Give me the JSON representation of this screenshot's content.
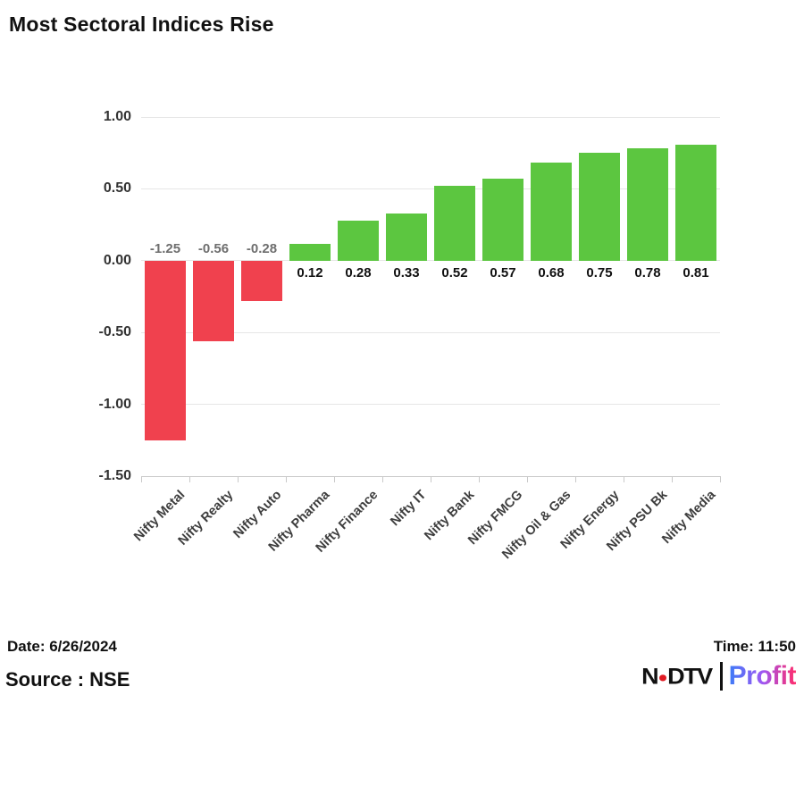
{
  "title": "Most Sectoral Indices Rise",
  "chart_data": {
    "type": "bar",
    "title": "Most Sectoral Indices Rise",
    "categories": [
      "Nifty Metal",
      "Nifty Realty",
      "Nifty Auto",
      "Nifty Pharma",
      "Nifty Finance",
      "Nifty IT",
      "Nifty Bank",
      "Nifty FMCG",
      "Nifty Oil & Gas",
      "Nifty Energy",
      "Nifty PSU Bk",
      "Nifty Media"
    ],
    "values": [
      -1.25,
      -0.56,
      -0.28,
      0.12,
      0.28,
      0.33,
      0.52,
      0.57,
      0.68,
      0.75,
      0.78,
      0.81
    ],
    "value_labels": [
      "-1.25",
      "-0.56",
      "-0.28",
      "0.12",
      "0.28",
      "0.33",
      "0.52",
      "0.57",
      "0.68",
      "0.75",
      "0.78",
      "0.81"
    ],
    "y_ticks": [
      "1.00",
      "0.50",
      "0.00",
      "-0.50",
      "-1.00",
      "-1.50"
    ],
    "ylim": [
      -1.5,
      1.0
    ],
    "xlabel": "",
    "ylabel": "",
    "grid": true,
    "legend": false,
    "colors": {
      "positive_bar": "#5CC640",
      "negative_bar": "#F0414E",
      "gridline": "#E6E6E6",
      "axis_line": "#C9C9C9",
      "negative_value_label": "#6E6E6E",
      "positive_value_label": "#111111",
      "x_label": "#3D3D3D",
      "y_label": "#333333"
    }
  },
  "footer": {
    "date": "Date: 6/26/2024",
    "time": "Time: 11:50",
    "source": "Source : NSE",
    "logo": {
      "ndtv_n": "N",
      "ndtv_dtv": "DTV",
      "ndtv_color": "#111111",
      "dot_color": "#E01A22",
      "separator_color": "#111111",
      "profit": "Profit",
      "profit_gradient": [
        "#3E7BF7",
        "#9E58F3",
        "#FF2D6C"
      ]
    }
  }
}
